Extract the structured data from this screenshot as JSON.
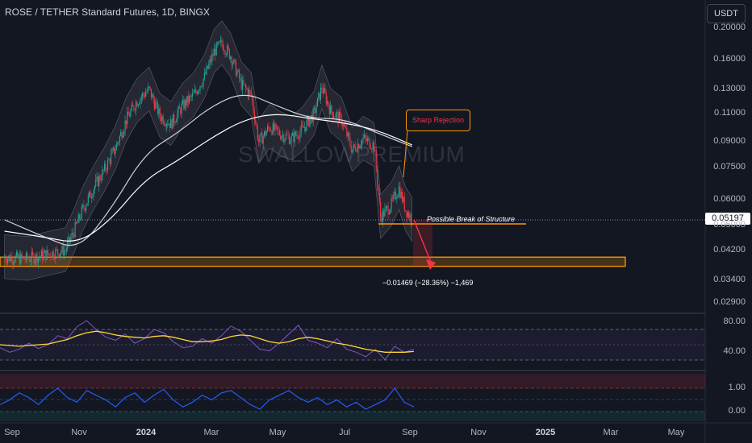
{
  "header": {
    "title": "ROSE / TETHER Standard Futures, 1D, BINGX",
    "currency_button": "USDT",
    "current_price": "0.05197",
    "watermark": "SWALLOWPREMIUM"
  },
  "annotations": {
    "sharp_rejection": "Sharp Rejection",
    "break_of_structure": "Possible Break of Structure",
    "measure": "−0.01469 (−28.36%) −1,469"
  },
  "colors": {
    "background": "#131722",
    "up": "#26a69a",
    "down": "#f23645",
    "ma_fast": "#d1d4dc",
    "ma_slow": "#ffffff",
    "zone": "#ff9800",
    "rsi": "#7e57c2",
    "rsi_ma": "#fdd835",
    "osc": "#2962ff"
  },
  "chart_data": [
    {
      "type": "candlestick",
      "scale": "log",
      "y_ticks": [
        "0.20000",
        "0.16000",
        "0.13000",
        "0.11000",
        "0.09000",
        "0.07500",
        "0.06000",
        "0.05000",
        "0.04200",
        "0.03400",
        "0.02900"
      ],
      "x_ticks": [
        "Sep",
        "Nov",
        "2024",
        "Mar",
        "May",
        "Jul",
        "Sep",
        "Nov",
        "2025",
        "Mar",
        "May"
      ],
      "close_path": [
        [
          "2023-08-25",
          0.04
        ],
        [
          "2023-09-15",
          0.0395
        ],
        [
          "2023-10-05",
          0.041
        ],
        [
          "2023-10-20",
          0.042
        ],
        [
          "2023-10-28",
          0.048
        ],
        [
          "2023-11-05",
          0.056
        ],
        [
          "2023-11-15",
          0.065
        ],
        [
          "2023-11-25",
          0.074
        ],
        [
          "2023-12-05",
          0.086
        ],
        [
          "2023-12-15",
          0.105
        ],
        [
          "2023-12-25",
          0.12
        ],
        [
          "2024-01-05",
          0.13
        ],
        [
          "2024-01-15",
          0.108
        ],
        [
          "2024-01-25",
          0.102
        ],
        [
          "2024-02-05",
          0.116
        ],
        [
          "2024-02-15",
          0.125
        ],
        [
          "2024-02-25",
          0.142
        ],
        [
          "2024-03-05",
          0.17
        ],
        [
          "2024-03-12",
          0.18
        ],
        [
          "2024-03-20",
          0.165
        ],
        [
          "2024-03-30",
          0.135
        ],
        [
          "2024-04-08",
          0.125
        ],
        [
          "2024-04-15",
          0.09
        ],
        [
          "2024-04-25",
          0.1
        ],
        [
          "2024-05-05",
          0.095
        ],
        [
          "2024-05-15",
          0.092
        ],
        [
          "2024-05-25",
          0.098
        ],
        [
          "2024-06-05",
          0.11
        ],
        [
          "2024-06-12",
          0.132
        ],
        [
          "2024-06-20",
          0.112
        ],
        [
          "2024-06-30",
          0.105
        ],
        [
          "2024-07-10",
          0.085
        ],
        [
          "2024-07-20",
          0.092
        ],
        [
          "2024-07-30",
          0.088
        ],
        [
          "2024-08-05",
          0.053
        ],
        [
          "2024-08-15",
          0.058
        ],
        [
          "2024-08-22",
          0.065
        ],
        [
          "2024-08-28",
          0.056
        ],
        [
          "2024-09-03",
          0.052
        ]
      ],
      "moving_averages": [
        {
          "name": "",
          "color": "#d1d4dc",
          "points": [
            [
              "2023-08-25",
              0.052
            ],
            [
              "2023-10-01",
              0.046
            ],
            [
              "2023-11-01",
              0.042
            ],
            [
              "2023-12-01",
              0.056
            ],
            [
              "2024-01-01",
              0.083
            ],
            [
              "2024-02-01",
              0.096
            ],
            [
              "2024-03-01",
              0.115
            ],
            [
              "2024-04-01",
              0.128
            ],
            [
              "2024-05-01",
              0.116
            ],
            [
              "2024-06-01",
              0.106
            ],
            [
              "2024-07-01",
              0.106
            ],
            [
              "2024-08-01",
              0.096
            ],
            [
              "2024-09-03",
              0.087
            ]
          ]
        },
        {
          "name": "",
          "color": "#ffffff",
          "points": [
            [
              "2023-08-25",
              0.048
            ],
            [
              "2023-10-01",
              0.046
            ],
            [
              "2023-11-01",
              0.044
            ],
            [
              "2023-12-01",
              0.052
            ],
            [
              "2024-01-01",
              0.069
            ],
            [
              "2024-02-01",
              0.079
            ],
            [
              "2024-03-01",
              0.092
            ],
            [
              "2024-04-01",
              0.105
            ],
            [
              "2024-05-01",
              0.11
            ],
            [
              "2024-06-01",
              0.106
            ],
            [
              "2024-07-01",
              0.103
            ],
            [
              "2024-08-01",
              0.098
            ],
            [
              "2024-09-03",
              0.088
            ]
          ]
        }
      ],
      "demand_zone": [
        0.0375,
        0.04
      ],
      "break_level": 0.0505
    },
    {
      "type": "line",
      "y_ticks": [
        "80.00",
        "40.00"
      ],
      "series": [
        {
          "name": "",
          "values": [
            46,
            40,
            44,
            52,
            45,
            50,
            62,
            58,
            74,
            82,
            70,
            60,
            56,
            64,
            52,
            58,
            70,
            66,
            54,
            46,
            48,
            58,
            52,
            62,
            75,
            68,
            56,
            44,
            42,
            52,
            64,
            76,
            56,
            52,
            46,
            58,
            44,
            40,
            34,
            44,
            30,
            48,
            40,
            44
          ]
        },
        {
          "name": "",
          "values": [
            50,
            49,
            48,
            49,
            50,
            51,
            54,
            57,
            62,
            66,
            68,
            66,
            63,
            61,
            60,
            59,
            61,
            62,
            60,
            57,
            54,
            54,
            55,
            57,
            61,
            63,
            62,
            58,
            54,
            52,
            54,
            58,
            60,
            58,
            55,
            52,
            50,
            47,
            44,
            42,
            40,
            40,
            40,
            41
          ]
        }
      ]
    },
    {
      "type": "line",
      "y_ticks": [
        "1.00",
        "0.00"
      ],
      "series": [
        {
          "name": "",
          "values": [
            0.3,
            0.5,
            0.8,
            0.6,
            0.3,
            0.7,
            1.0,
            0.6,
            0.4,
            0.9,
            0.7,
            0.5,
            0.2,
            0.6,
            0.8,
            0.4,
            0.7,
            0.95,
            0.5,
            0.2,
            0.4,
            0.7,
            0.5,
            0.8,
            0.9,
            0.6,
            0.3,
            0.1,
            0.5,
            0.7,
            0.9,
            0.6,
            0.4,
            0.6,
            0.3,
            0.5,
            0.2,
            0.4,
            0.1,
            0.3,
            0.5,
            1.0,
            0.4,
            0.2
          ]
        }
      ]
    }
  ]
}
